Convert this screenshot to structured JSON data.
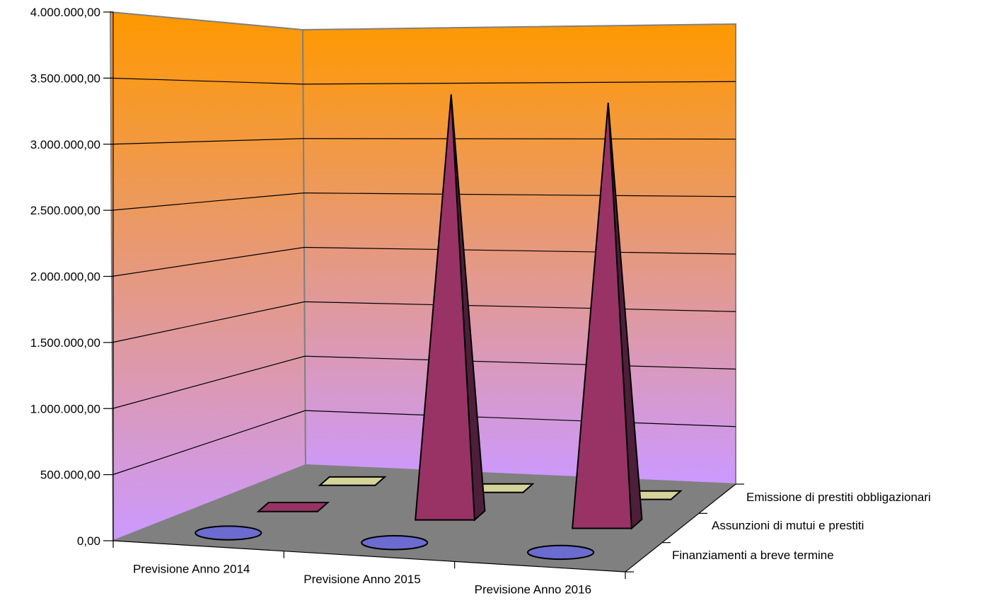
{
  "chart_data": {
    "type": "bar",
    "subtype": "3d-cone-pyramid-cylinder",
    "title": "",
    "xlabel": "",
    "ylabel": "",
    "ylim": [
      0,
      4000000
    ],
    "y_ticks": [
      "0,00",
      "500.000,00",
      "1.000.000,00",
      "1.500.000,00",
      "2.000.000,00",
      "2.500.000,00",
      "3.000.000,00",
      "3.500.000,00",
      "4.000.000,00"
    ],
    "categories": [
      "Previsione Anno 2014",
      "Previsione Anno 2015",
      "Previsione Anno 2016"
    ],
    "series": [
      {
        "name": "Finanziamenti a breve termine",
        "values": [
          0,
          0,
          0
        ],
        "color": "#6b6bd0"
      },
      {
        "name": "Assunzioni di mutui e prestiti",
        "values": [
          0,
          3500000,
          3500000
        ],
        "color": "#993366"
      },
      {
        "name": "Emissione di prestiti obbligazionari",
        "values": [
          0,
          0,
          0
        ],
        "color": "#d4d49a"
      }
    ],
    "grid": true,
    "wall_gradient": [
      "#ff9900",
      "#cc99ff"
    ],
    "floor_color": "#808080"
  }
}
